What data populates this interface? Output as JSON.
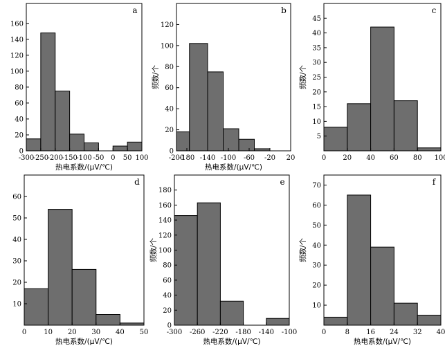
{
  "colors": {
    "bar_fill": "#6e6e6e",
    "bar_stroke": "#000000",
    "frame": "#000000"
  },
  "chart_data": [
    {
      "type": "bar",
      "panel_label": "a",
      "xlabel": "热电系数/(μV/℃)",
      "ylabel": "",
      "xlim": [
        -300,
        100
      ],
      "ylim": [
        0,
        185
      ],
      "xticks": [
        -300,
        -250,
        -200,
        -150,
        -100,
        -50,
        0,
        50,
        100
      ],
      "yticks": [
        0,
        20,
        40,
        60,
        80,
        100,
        120,
        140,
        160
      ],
      "bins": [
        [
          -300,
          -250
        ],
        [
          -250,
          -200
        ],
        [
          -200,
          -150
        ],
        [
          -150,
          -100
        ],
        [
          -100,
          -50
        ],
        [
          -50,
          0
        ],
        [
          0,
          50
        ],
        [
          50,
          100
        ]
      ],
      "values": [
        15,
        148,
        75,
        21,
        10,
        0,
        6,
        11
      ]
    },
    {
      "type": "bar",
      "panel_label": "b",
      "xlabel": "热电系数/(μV/℃)",
      "ylabel": "频数/个",
      "xlim": [
        -200,
        20
      ],
      "ylim": [
        0,
        140
      ],
      "xticks": [
        -200,
        -180,
        -140,
        -100,
        -60,
        -20,
        20
      ],
      "yticks": [
        0,
        20,
        40,
        60,
        80,
        100,
        120
      ],
      "bins": [
        [
          -200,
          -175
        ],
        [
          -175,
          -140
        ],
        [
          -140,
          -110
        ],
        [
          -110,
          -80
        ],
        [
          -80,
          -50
        ],
        [
          -50,
          -20
        ],
        [
          -20,
          5
        ]
      ],
      "values": [
        18,
        102,
        75,
        21,
        11,
        2,
        0
      ]
    },
    {
      "type": "bar",
      "panel_label": "c",
      "xlabel": "",
      "ylabel": "频数/个",
      "xlim": [
        0,
        100
      ],
      "ylim": [
        0,
        50
      ],
      "xticks": [
        0,
        20,
        40,
        60,
        80,
        100
      ],
      "yticks": [
        5,
        10,
        15,
        20,
        25,
        30,
        35,
        40,
        45
      ],
      "bins": [
        [
          0,
          20
        ],
        [
          20,
          40
        ],
        [
          40,
          60
        ],
        [
          60,
          80
        ],
        [
          80,
          100
        ]
      ],
      "values": [
        8,
        16,
        42,
        17,
        1
      ]
    },
    {
      "type": "bar",
      "panel_label": "d",
      "xlabel": "热电系数/(μV/℃)",
      "ylabel": "",
      "xlim": [
        0,
        50
      ],
      "ylim": [
        0,
        70
      ],
      "xticks": [
        0,
        10,
        20,
        30,
        40,
        50
      ],
      "yticks": [
        10,
        20,
        30,
        40,
        50,
        60
      ],
      "bins": [
        [
          0,
          10
        ],
        [
          10,
          20
        ],
        [
          20,
          30
        ],
        [
          30,
          40
        ],
        [
          40,
          50
        ]
      ],
      "values": [
        17,
        54,
        26,
        5,
        1
      ]
    },
    {
      "type": "bar",
      "panel_label": "e",
      "xlabel": "热电系数/(μV/℃)",
      "ylabel": "频数/个",
      "xlim": [
        -300,
        -100
      ],
      "ylim": [
        0,
        200
      ],
      "xticks": [
        -300,
        -260,
        -220,
        -180,
        -140,
        -100
      ],
      "yticks": [
        0,
        20,
        40,
        60,
        80,
        100,
        120,
        140,
        160,
        180
      ],
      "bins": [
        [
          -300,
          -260
        ],
        [
          -260,
          -220
        ],
        [
          -220,
          -180
        ],
        [
          -180,
          -140
        ],
        [
          -140,
          -100
        ]
      ],
      "values": [
        146,
        163,
        32,
        0,
        9
      ]
    },
    {
      "type": "bar",
      "panel_label": "f",
      "xlabel": "热电系数/(μV/℃)",
      "ylabel": "频数/个",
      "xlim": [
        0,
        40
      ],
      "ylim": [
        0,
        75
      ],
      "xticks": [
        0,
        8,
        16,
        24,
        32,
        40
      ],
      "yticks": [
        10,
        20,
        30,
        40,
        50,
        60,
        70
      ],
      "bins": [
        [
          0,
          8
        ],
        [
          8,
          16
        ],
        [
          16,
          24
        ],
        [
          24,
          32
        ],
        [
          32,
          40
        ]
      ],
      "values": [
        4,
        65,
        39,
        11,
        5
      ]
    }
  ]
}
